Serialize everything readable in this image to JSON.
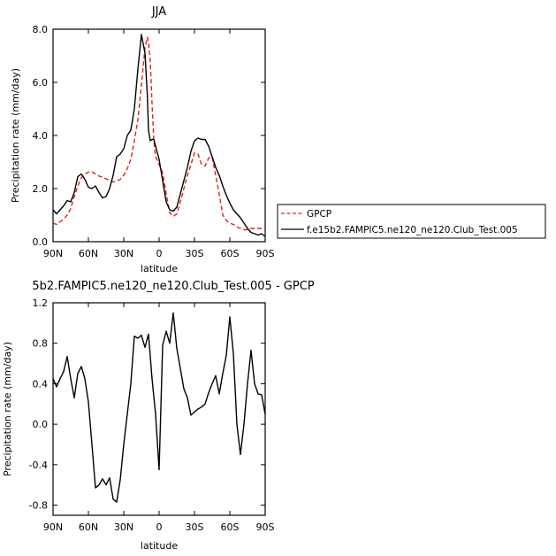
{
  "chart_data": [
    {
      "type": "line",
      "title": "JJA",
      "xlabel": "latitude",
      "ylabel": "Precipitation rate (mm/day)",
      "xlim": [
        90,
        -90
      ],
      "ylim": [
        0,
        8
      ],
      "xticks": [
        {
          "value": 90,
          "label": "90N"
        },
        {
          "value": 60,
          "label": "60N"
        },
        {
          "value": 30,
          "label": "30N"
        },
        {
          "value": 0,
          "label": "0"
        },
        {
          "value": -30,
          "label": "30S"
        },
        {
          "value": -60,
          "label": "60S"
        },
        {
          "value": -90,
          "label": "90S"
        }
      ],
      "yticks": [
        {
          "value": 0,
          "label": "0.0"
        },
        {
          "value": 2,
          "label": "2.0"
        },
        {
          "value": 4,
          "label": "4.0"
        },
        {
          "value": 6,
          "label": "6.0"
        },
        {
          "value": 8,
          "label": "8.0"
        }
      ],
      "legend_position": "right",
      "series": [
        {
          "name": "GPCP",
          "color": "#e02020",
          "dash": "dashed",
          "x": [
            90,
            87,
            84,
            81,
            78,
            75,
            72,
            69,
            66,
            63,
            60,
            57,
            54,
            51,
            48,
            45,
            42,
            39,
            36,
            33,
            30,
            27,
            24,
            21,
            18,
            15,
            12,
            10,
            9,
            7.5,
            6,
            4.5,
            3,
            0,
            -3,
            -6,
            -9,
            -12,
            -15,
            -18,
            -21,
            -24,
            -27,
            -30,
            -33,
            -36,
            -39,
            -42,
            -45,
            -48,
            -51,
            -54,
            -57,
            -60,
            -63,
            -66,
            -69,
            -72,
            -75,
            -78,
            -81,
            -84,
            -87,
            -90
          ],
          "y": [
            0.7,
            0.65,
            0.75,
            0.85,
            1.0,
            1.25,
            1.7,
            2.1,
            2.4,
            2.55,
            2.62,
            2.64,
            2.55,
            2.47,
            2.43,
            2.37,
            2.3,
            2.25,
            2.28,
            2.35,
            2.5,
            2.75,
            3.1,
            3.8,
            4.6,
            5.9,
            7.3,
            7.7,
            7.5,
            6.8,
            5.2,
            3.8,
            3.2,
            2.9,
            2.6,
            1.8,
            1.1,
            0.95,
            1.05,
            1.5,
            2.0,
            2.5,
            2.9,
            3.35,
            3.3,
            2.9,
            2.85,
            3.15,
            3.2,
            2.5,
            1.8,
            1.0,
            0.8,
            0.7,
            0.65,
            0.55,
            0.5,
            0.45,
            0.45,
            0.5,
            0.5,
            0.5,
            0.5,
            0.5
          ]
        },
        {
          "name": "f.e15b2.FAMPIC5.ne120_ne120.Club_Test.005",
          "color": "#000000",
          "dash": "solid",
          "x": [
            90,
            87,
            84,
            81,
            78,
            75,
            72,
            69,
            66,
            63,
            60,
            57,
            54,
            51,
            48,
            45,
            42,
            39,
            36,
            33,
            30,
            27,
            24,
            21,
            18,
            15,
            12,
            10,
            9,
            7.5,
            6,
            4.5,
            3,
            0,
            -3,
            -6,
            -9,
            -12,
            -15,
            -18,
            -21,
            -24,
            -27,
            -30,
            -33,
            -36,
            -39,
            -42,
            -45,
            -48,
            -51,
            -54,
            -57,
            -60,
            -63,
            -66,
            -69,
            -72,
            -75,
            -78,
            -81,
            -84,
            -87,
            -90
          ],
          "y": [
            1.2,
            1.05,
            1.2,
            1.35,
            1.55,
            1.5,
            1.85,
            2.45,
            2.55,
            2.35,
            2.05,
            2.0,
            2.1,
            1.85,
            1.65,
            1.7,
            2.0,
            2.5,
            3.2,
            3.3,
            3.5,
            4.0,
            4.2,
            5.0,
            6.5,
            7.8,
            7.1,
            5.5,
            4.2,
            3.8,
            3.85,
            3.85,
            3.6,
            3.1,
            2.3,
            1.5,
            1.2,
            1.15,
            1.3,
            1.8,
            2.3,
            2.8,
            3.4,
            3.8,
            3.9,
            3.85,
            3.85,
            3.6,
            3.2,
            2.8,
            2.5,
            2.1,
            1.75,
            1.45,
            1.2,
            1.05,
            0.9,
            0.7,
            0.5,
            0.35,
            0.3,
            0.25,
            0.3,
            0.2
          ]
        }
      ]
    },
    {
      "type": "line",
      "title": "5b2.FAMPIC5.ne120_ne120.Club_Test.005 - GPCP",
      "xlabel": "latitude",
      "ylabel": "Precipitation rate (mm/day)",
      "xlim": [
        90,
        -90
      ],
      "ylim": [
        -0.9,
        1.2
      ],
      "xticks": [
        {
          "value": 90,
          "label": "90N"
        },
        {
          "value": 60,
          "label": "60N"
        },
        {
          "value": 30,
          "label": "30N"
        },
        {
          "value": 0,
          "label": "0"
        },
        {
          "value": -30,
          "label": "30S"
        },
        {
          "value": -60,
          "label": "60S"
        },
        {
          "value": -90,
          "label": "90S"
        }
      ],
      "yticks": [
        {
          "value": -0.8,
          "label": "-0.8"
        },
        {
          "value": -0.4,
          "label": "-0.4"
        },
        {
          "value": 0,
          "label": "0.0"
        },
        {
          "value": 0.4,
          "label": "0.4"
        },
        {
          "value": 0.8,
          "label": "0.8"
        },
        {
          "value": 1.2,
          "label": "1.2"
        }
      ],
      "series": [
        {
          "color": "#000000",
          "dash": "solid",
          "x": [
            90,
            87,
            84,
            81,
            78,
            75,
            72,
            69,
            66,
            63,
            60,
            57,
            54,
            51,
            48,
            45,
            42,
            39,
            36,
            33,
            30,
            27,
            24,
            21,
            18,
            15,
            12,
            9,
            6,
            3,
            0,
            -3,
            -6,
            -9,
            -12,
            -15,
            -18,
            -21,
            -24,
            -27,
            -30,
            -33,
            -36,
            -39,
            -42,
            -45,
            -48,
            -51,
            -54,
            -57,
            -60,
            -63,
            -66,
            -69,
            -72,
            -75,
            -78,
            -81,
            -84,
            -87,
            -90
          ],
          "y": [
            0.45,
            0.37,
            0.45,
            0.52,
            0.67,
            0.45,
            0.26,
            0.5,
            0.57,
            0.45,
            0.22,
            -0.2,
            -0.63,
            -0.6,
            -0.54,
            -0.6,
            -0.53,
            -0.74,
            -0.77,
            -0.55,
            -0.2,
            0.1,
            0.4,
            0.87,
            0.85,
            0.88,
            0.76,
            0.89,
            0.45,
            0.1,
            -0.45,
            0.78,
            0.92,
            0.8,
            1.1,
            0.75,
            0.55,
            0.35,
            0.26,
            0.09,
            0.12,
            0.15,
            0.17,
            0.2,
            0.31,
            0.4,
            0.48,
            0.3,
            0.5,
            0.68,
            1.06,
            0.7,
            0.0,
            -0.3,
            0.0,
            0.4,
            0.73,
            0.4,
            0.3,
            0.29,
            0.1
          ]
        }
      ]
    }
  ]
}
